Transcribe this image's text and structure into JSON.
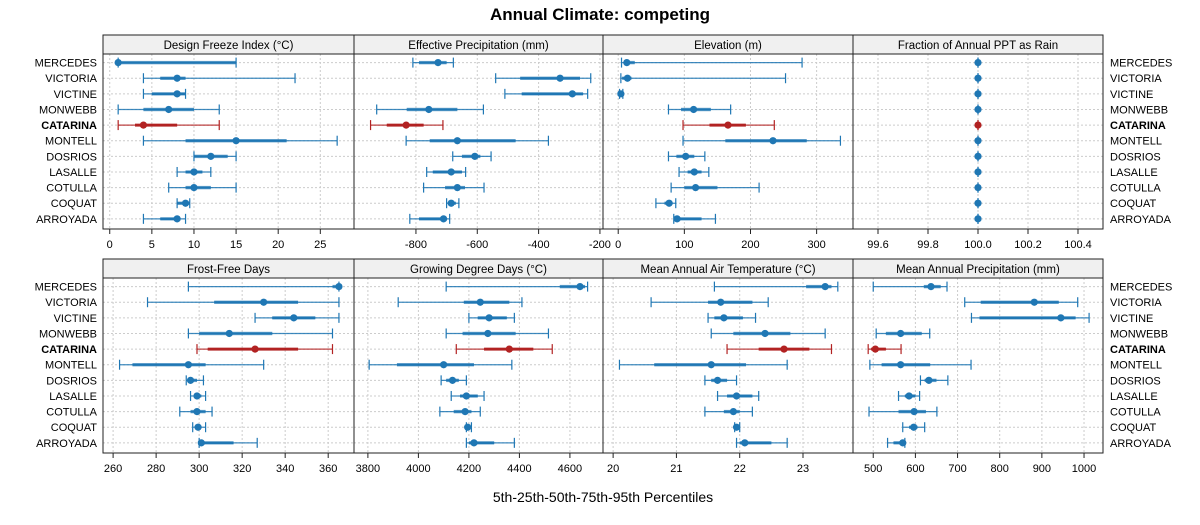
{
  "chart_data": {
    "type": "dotplot-percentile-intervals",
    "title": "Annual Climate: competing",
    "xlabel": "5th-25th-50th-75th-95th Percentiles",
    "ylabel": "",
    "highlight_site": "CATARINA",
    "colors": {
      "normal": "#1f77b4",
      "highlight": "#b22222",
      "strip": "#f0f0f0",
      "grid": "#cccccc"
    },
    "grid": true,
    "sites": [
      "MERCEDES",
      "VICTORIA",
      "VICTINE",
      "MONWEBB",
      "CATARINA",
      "MONTELL",
      "DOSRIOS",
      "LASALLE",
      "COTULLA",
      "COQUAT",
      "ARROYADA"
    ],
    "percentile_labels": [
      "p5",
      "p25",
      "p50",
      "p75",
      "p95"
    ],
    "panels": [
      {
        "name": "Design Freeze Index (°C)",
        "xlim": [
          -0.8,
          29
        ],
        "ticks": [
          0,
          5,
          10,
          15,
          20,
          25
        ],
        "tick_labels": [
          "0",
          "5",
          "10",
          "15",
          "20",
          "25"
        ],
        "values": [
          [
            1,
            1,
            1,
            15,
            15
          ],
          [
            4,
            6,
            8,
            9,
            22
          ],
          [
            4,
            5,
            8,
            9,
            9
          ],
          [
            1,
            4,
            7,
            10,
            13
          ],
          [
            1,
            3,
            4,
            8,
            13
          ],
          [
            4,
            9,
            15,
            21,
            27
          ],
          [
            10,
            10,
            12,
            14,
            15
          ],
          [
            8,
            9,
            10,
            11,
            12
          ],
          [
            7,
            9,
            10,
            12,
            15
          ],
          [
            8,
            8,
            9,
            9.5,
            9.5
          ],
          [
            4,
            6,
            8,
            8,
            9
          ]
        ]
      },
      {
        "name": "Effective Precipitation (mm)",
        "xlim": [
          -1002,
          -190
        ],
        "ticks": [
          -800,
          -600,
          -400,
          -200
        ],
        "tick_labels": [
          "-800",
          "-600",
          "-400",
          "-200"
        ],
        "values": [
          [
            -810,
            -790,
            -728,
            -700,
            -678
          ],
          [
            -540,
            -460,
            -330,
            -265,
            -230
          ],
          [
            -510,
            -455,
            -290,
            -255,
            -240
          ],
          [
            -928,
            -830,
            -758,
            -665,
            -580
          ],
          [
            -948,
            -895,
            -832,
            -775,
            -712
          ],
          [
            -832,
            -755,
            -665,
            -475,
            -368
          ],
          [
            -680,
            -650,
            -608,
            -590,
            -555
          ],
          [
            -765,
            -745,
            -685,
            -650,
            -638
          ],
          [
            -775,
            -705,
            -665,
            -640,
            -578
          ],
          [
            -700,
            -695,
            -685,
            -670,
            -660
          ],
          [
            -820,
            -790,
            -710,
            -700,
            -690
          ]
        ]
      },
      {
        "name": "Elevation (m)",
        "xlim": [
          -23,
          355
        ],
        "ticks": [
          0,
          100,
          200,
          300
        ],
        "tick_labels": [
          "0",
          "100",
          "200",
          "300"
        ],
        "values": [
          [
            5,
            8,
            13,
            25,
            278
          ],
          [
            4,
            6,
            14,
            20,
            253
          ],
          [
            2,
            3,
            4,
            6,
            7
          ],
          [
            76,
            95,
            114,
            140,
            170
          ],
          [
            98,
            138,
            166,
            193,
            236
          ],
          [
            98,
            162,
            234,
            285,
            336
          ],
          [
            76,
            88,
            102,
            115,
            131
          ],
          [
            92,
            105,
            115,
            126,
            137
          ],
          [
            80,
            100,
            117,
            150,
            213
          ],
          [
            57,
            70,
            77,
            82,
            87
          ],
          [
            84,
            86,
            89,
            126,
            147
          ]
        ]
      },
      {
        "name": "Fraction of Annual PPT as Rain",
        "xlim": [
          99.5,
          100.5
        ],
        "ticks": [
          99.6,
          99.8,
          100.0,
          100.2,
          100.4
        ],
        "tick_labels": [
          "99.6",
          "99.8",
          "100.0",
          "100.2",
          "100.4"
        ],
        "values": [
          [
            100,
            100,
            100,
            100,
            100
          ],
          [
            100,
            100,
            100,
            100,
            100
          ],
          [
            100,
            100,
            100,
            100,
            100
          ],
          [
            100,
            100,
            100,
            100,
            100
          ],
          [
            100,
            100,
            100,
            100,
            100
          ],
          [
            100,
            100,
            100,
            100,
            100
          ],
          [
            100,
            100,
            100,
            100,
            100
          ],
          [
            100,
            100,
            100,
            100,
            100
          ],
          [
            100,
            100,
            100,
            100,
            100
          ],
          [
            100,
            100,
            100,
            100,
            100
          ],
          [
            100,
            100,
            100,
            100,
            100
          ]
        ]
      },
      {
        "name": "Frost-Free Days",
        "xlim": [
          255.3,
          372
        ],
        "ticks": [
          260,
          280,
          300,
          320,
          340,
          360
        ],
        "tick_labels": [
          "260",
          "280",
          "300",
          "320",
          "340",
          "360"
        ],
        "values": [
          [
            295,
            362,
            365,
            365,
            365
          ],
          [
            276,
            307,
            330,
            346,
            365
          ],
          [
            326,
            334,
            344,
            354,
            365
          ],
          [
            295,
            300,
            314,
            334,
            362
          ],
          [
            299,
            304,
            326,
            346,
            362
          ],
          [
            263,
            269,
            295,
            303,
            330
          ],
          [
            294,
            295,
            296,
            299,
            302
          ],
          [
            296,
            298,
            299,
            301,
            303
          ],
          [
            291,
            296,
            299,
            303,
            306
          ],
          [
            297,
            298,
            299.5,
            301,
            303
          ],
          [
            300,
            300,
            301,
            316,
            327
          ]
        ]
      },
      {
        "name": "Growing Degree Days (°C)",
        "xlim": [
          3745,
          4731
        ],
        "ticks": [
          3800,
          4000,
          4200,
          4400,
          4600
        ],
        "tick_labels": [
          "3800",
          "4000",
          "4200",
          "4400",
          "4600"
        ],
        "values": [
          [
            4110,
            4560,
            4640,
            4660,
            4670
          ],
          [
            3920,
            4180,
            4245,
            4360,
            4410
          ],
          [
            4200,
            4235,
            4280,
            4350,
            4380
          ],
          [
            4110,
            4175,
            4275,
            4385,
            4515
          ],
          [
            4150,
            4260,
            4360,
            4455,
            4530
          ],
          [
            3805,
            3915,
            4100,
            4220,
            4370
          ],
          [
            4090,
            4110,
            4135,
            4160,
            4190
          ],
          [
            4130,
            4165,
            4190,
            4235,
            4260
          ],
          [
            4085,
            4140,
            4185,
            4210,
            4245
          ],
          [
            4190,
            4192,
            4195,
            4205,
            4210
          ],
          [
            4190,
            4200,
            4220,
            4300,
            4380
          ]
        ]
      },
      {
        "name": "Mean Annual Air Temperature (°C)",
        "xlim": [
          19.84,
          23.79
        ],
        "ticks": [
          20,
          21,
          22,
          23
        ],
        "tick_labels": [
          "20",
          "21",
          "22",
          "23"
        ],
        "values": [
          [
            21.6,
            23.05,
            23.35,
            23.45,
            23.55
          ],
          [
            20.6,
            21.5,
            21.7,
            22.2,
            22.45
          ],
          [
            21.5,
            21.6,
            21.75,
            22.05,
            22.25
          ],
          [
            21.55,
            21.9,
            22.4,
            22.8,
            23.35
          ],
          [
            21.8,
            22.3,
            22.7,
            23.1,
            23.45
          ],
          [
            20.1,
            20.65,
            21.55,
            22.1,
            22.75
          ],
          [
            21.45,
            21.55,
            21.65,
            21.8,
            21.95
          ],
          [
            21.65,
            21.8,
            21.95,
            22.2,
            22.3
          ],
          [
            21.45,
            21.75,
            21.9,
            22.0,
            22.2
          ],
          [
            21.92,
            21.94,
            21.95,
            21.99,
            22.0
          ],
          [
            21.95,
            22.0,
            22.08,
            22.5,
            22.75
          ]
        ]
      },
      {
        "name": "Mean Annual Precipitation (mm)",
        "xlim": [
          452,
          1045
        ],
        "ticks": [
          500,
          600,
          700,
          800,
          900,
          1000
        ],
        "tick_labels": [
          "500",
          "600",
          "700",
          "800",
          "900",
          "1000"
        ],
        "values": [
          [
            500,
            620,
            637,
            660,
            675
          ],
          [
            717,
            755,
            882,
            940,
            985
          ],
          [
            733,
            752,
            945,
            980,
            1012
          ],
          [
            507,
            530,
            565,
            615,
            634
          ],
          [
            488,
            495,
            505,
            530,
            566
          ],
          [
            492,
            520,
            565,
            635,
            732
          ],
          [
            612,
            622,
            632,
            650,
            677
          ],
          [
            560,
            575,
            585,
            600,
            610
          ],
          [
            490,
            560,
            597,
            625,
            651
          ],
          [
            570,
            585,
            596,
            605,
            622
          ],
          [
            534,
            548,
            570,
            575,
            575
          ]
        ]
      }
    ]
  }
}
